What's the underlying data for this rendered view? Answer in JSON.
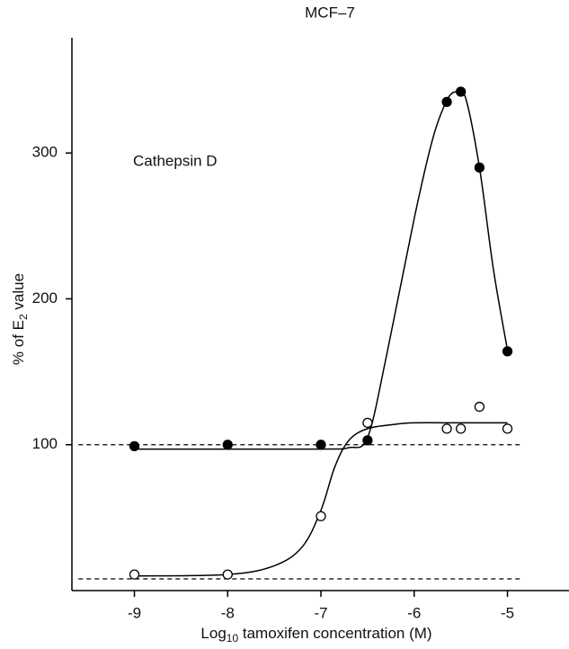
{
  "chart_data": {
    "type": "scatter",
    "title": "MCF–7",
    "annotation": "Cathepsin D",
    "y_label": {
      "main": "% of E",
      "sub": "2",
      "rest": " value"
    },
    "x_label": {
      "main": "Log",
      "sub": "10",
      "rest": " tamoxifen concentration (M)"
    },
    "xlim": [
      -9.67,
      -4.34
    ],
    "ylim": [
      0,
      379
    ],
    "xticks": [
      -9,
      -8,
      -7,
      -6,
      -5
    ],
    "yticks": [
      100,
      200,
      300
    ],
    "series": [
      {
        "fill": "filled",
        "color": "#000000",
        "x": [
          -9,
          -8,
          -7,
          -6.5,
          -5.65,
          -5.5,
          -5.3,
          -5
        ],
        "values": [
          99,
          100,
          100,
          103,
          335,
          342,
          290,
          164
        ]
      },
      {
        "fill": "open",
        "color": "#000000",
        "x": [
          -9,
          -8,
          -7,
          -6.5,
          -5.65,
          -5.5,
          -5.3,
          -5
        ],
        "values": [
          11,
          11,
          51,
          115,
          111,
          111,
          126,
          111
        ]
      }
    ],
    "fit_curves": [
      {
        "x": [
          -9,
          -8,
          -7,
          -6.7,
          -6.5,
          -6.3,
          -6,
          -5.8,
          -5.65,
          -5.55,
          -5.45,
          -5.3,
          -5.15,
          -5
        ],
        "y": [
          97,
          97,
          97,
          98,
          105,
          160,
          255,
          310,
          336,
          342,
          338,
          290,
          220,
          165
        ]
      },
      {
        "x": [
          -9,
          -8,
          -7.5,
          -7.2,
          -7,
          -6.85,
          -6.7,
          -6.5,
          -6.2,
          -6,
          -5.5,
          -5
        ],
        "y": [
          10,
          11,
          17,
          30,
          55,
          85,
          103,
          111,
          114,
          115,
          115,
          115
        ]
      }
    ],
    "reference_lines": {
      "y": [
        100,
        8
      ],
      "x": [
        -9.6,
        -4.85
      ]
    }
  }
}
